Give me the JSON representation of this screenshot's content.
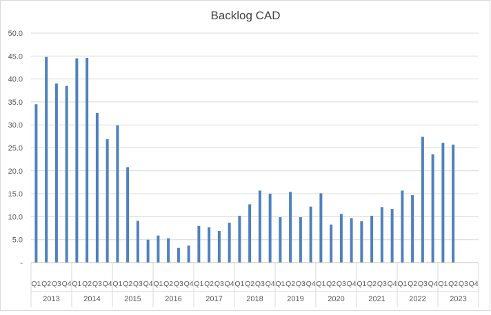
{
  "chart_data": {
    "type": "bar",
    "title": "Backlog CAD",
    "xlabel": "",
    "ylabel": "",
    "ylim": [
      0,
      50
    ],
    "yticks": [
      0,
      5,
      10,
      15,
      20,
      25,
      30,
      35,
      40,
      45,
      50
    ],
    "ytick_labels": [
      "-",
      "5.0",
      "10.0",
      "15.0",
      "20.0",
      "25.0",
      "30.0",
      "35.0",
      "40.0",
      "45.0",
      "50.0"
    ],
    "grid": true,
    "legend": "none",
    "bar_color": "#4F81BD",
    "years": [
      "2013",
      "2014",
      "2015",
      "2016",
      "2017",
      "2018",
      "2019",
      "2020",
      "2021",
      "2022",
      "2023"
    ],
    "quarters": [
      "Q1",
      "Q2",
      "Q3",
      "Q4"
    ],
    "values": [
      34.5,
      44.8,
      39.0,
      38.5,
      44.5,
      44.6,
      32.6,
      26.9,
      29.9,
      20.8,
      9.1,
      5.0,
      5.9,
      5.3,
      3.2,
      3.7,
      8.0,
      7.7,
      6.9,
      8.7,
      10.2,
      12.7,
      15.7,
      15.0,
      9.9,
      15.4,
      9.9,
      12.2,
      15.1,
      8.3,
      10.6,
      9.7,
      9.0,
      10.2,
      12.1,
      11.7,
      15.7,
      14.7,
      27.4,
      23.6,
      26.1,
      25.7,
      null,
      null
    ]
  }
}
